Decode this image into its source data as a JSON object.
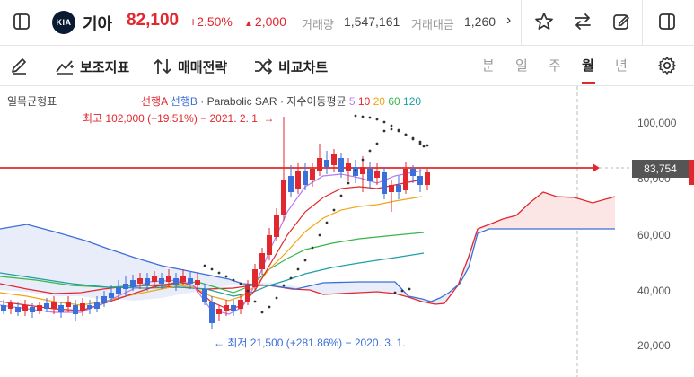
{
  "header": {
    "stock_name": "기아",
    "logo_text": "KIA",
    "price": "82,100",
    "change_pct": "+2.50%",
    "change_abs": "2,000",
    "volume_label": "거래량",
    "volume_value": "1,547,161",
    "trade_value_label": "거래대금",
    "trade_value_value": "1,260"
  },
  "toolbar": {
    "indicator_label": "보조지표",
    "strategy_label": "매매전략",
    "compare_label": "비교차트",
    "periods": [
      "분",
      "일",
      "주",
      "월",
      "년"
    ],
    "active_period": "월"
  },
  "chart": {
    "indicator_title": "일목균형표",
    "legend": {
      "leading_a": "선행A",
      "leading_b": "선행B",
      "separator": "·",
      "sar": "Parabolic SAR",
      "ma_label": "지수이동평균",
      "ma_periods": [
        "5",
        "10",
        "20",
        "60",
        "120"
      ]
    },
    "high_annotation": "최고 102,000 (−19.51%) − 2021. 2. 1. →",
    "low_annotation": "← 최저 21,500 (+281.86%) − 2020. 3. 1.",
    "current_price_tag": "83,754",
    "y_axis_labels": [
      "100,000",
      "80,000",
      "60,000",
      "40,000",
      "20,000"
    ]
  },
  "colors": {
    "up": "#e0282e",
    "down": "#3b6fd9",
    "cloud_fill_bull": "#dfe6f7",
    "cloud_fill_bear": "#fbe4e4",
    "ma5": "#b37cf0",
    "ma10": "#e0282e",
    "ma20": "#f2a516",
    "ma60": "#39b54a",
    "ma120": "#1fa0a0"
  }
}
